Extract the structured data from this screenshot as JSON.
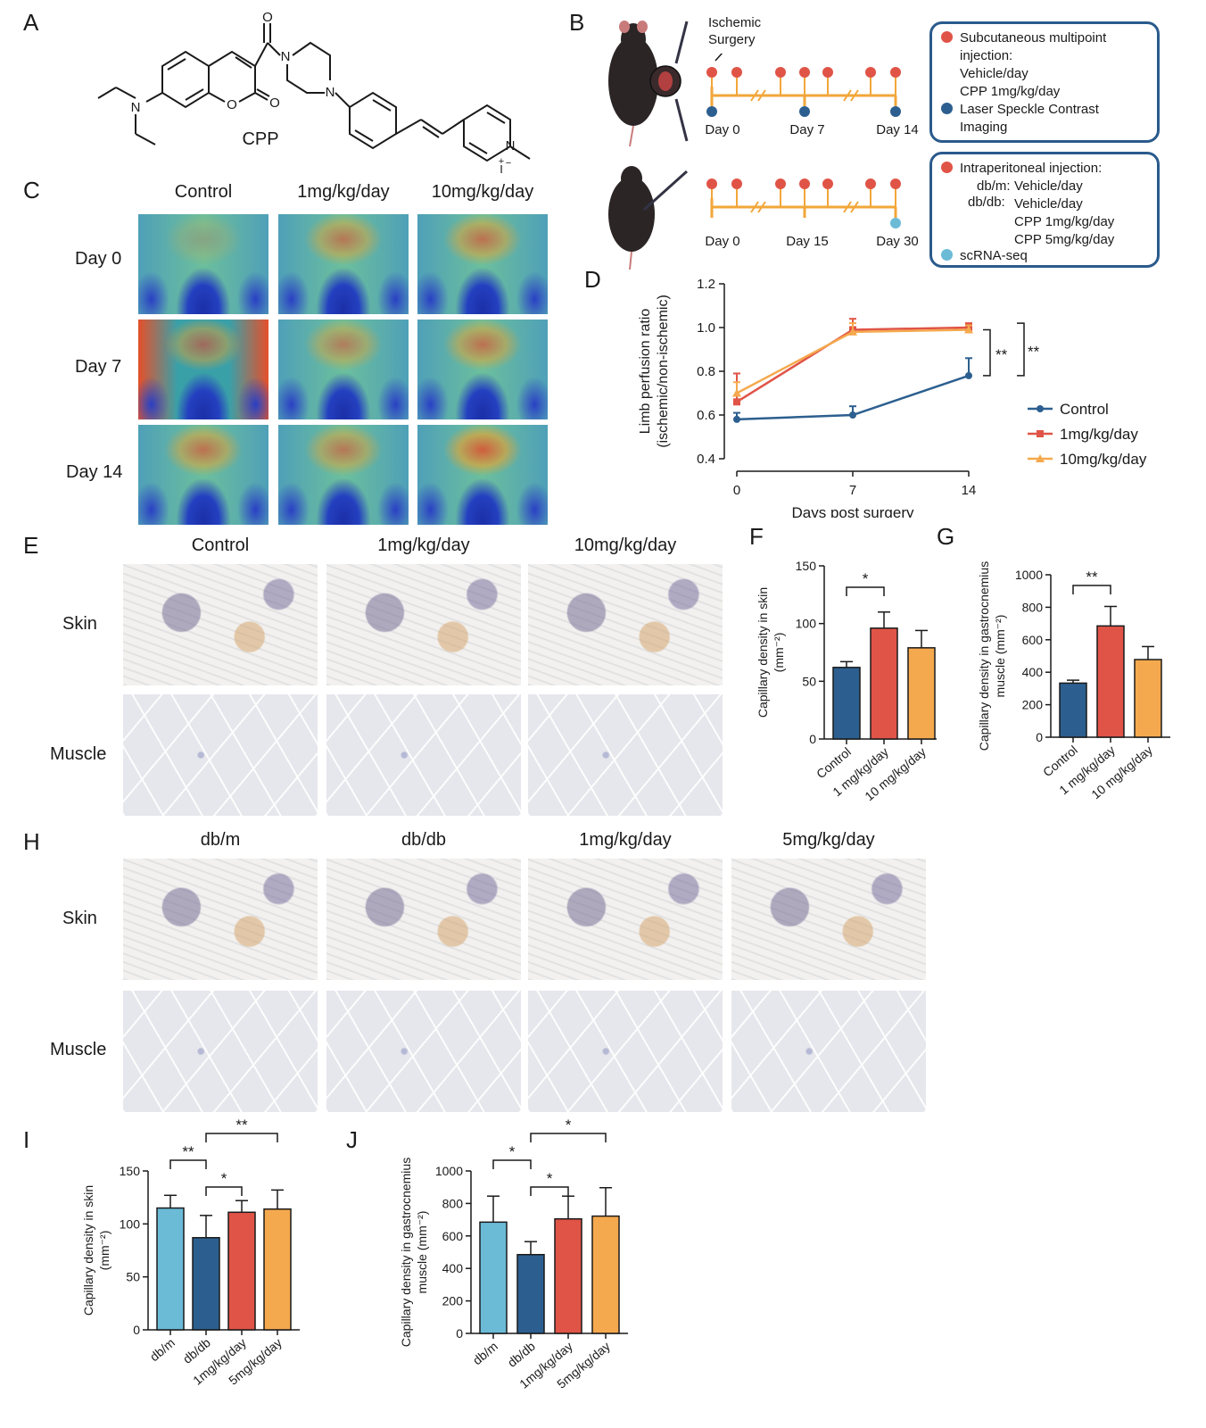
{
  "panels": {
    "A": "A",
    "B": "B",
    "C": "C",
    "D": "D",
    "E": "E",
    "F": "F",
    "G": "G",
    "H": "H",
    "I": "I",
    "J": "J"
  },
  "colors": {
    "control": "#2c5f8f",
    "dose1": "#e05447",
    "dose10": "#f5a94e",
    "dbm": "#6bbbd7",
    "red_dot": "#e05447",
    "blue_dot": "#2c5f8f",
    "light_dot": "#6bbbd7",
    "timeline": "#f2a63a",
    "box_border": "#2a5a8c"
  },
  "panelA": {
    "molecule_label": "CPP",
    "atoms": [
      "N",
      "O",
      "O",
      "O",
      "N",
      "N",
      "N",
      "+",
      "I",
      "−"
    ]
  },
  "panelB": {
    "surgery_label": "Ischemic Surgery",
    "top_days": [
      "Day 0",
      "Day 7",
      "Day 14"
    ],
    "bottom_days": [
      "Day 0",
      "Day 15",
      "Day 30"
    ],
    "box1": [
      "Subcutaneous multipoint",
      "injection:",
      "Vehicle/day",
      "CPP 1mg/kg/day",
      "Laser Speckle Contrast",
      "Imaging"
    ],
    "box2": {
      "title": "Intraperitoneal injection:",
      "dbm_label": "db/m:",
      "dbm_value": "Vehicle/day",
      "dbdb_label": "db/db:",
      "dbdb_values": [
        "Vehicle/day",
        "CPP 1mg/kg/day",
        "CPP 5mg/kg/day"
      ],
      "seq": "scRNA-seq"
    }
  },
  "panelC": {
    "columns": [
      "Control",
      "1mg/kg/day",
      "10mg/kg/day"
    ],
    "rows": [
      "Day 0",
      "Day 7",
      "Day 14"
    ]
  },
  "panelE": {
    "columns": [
      "Control",
      "1mg/kg/day",
      "10mg/kg/day"
    ],
    "rows": [
      "Skin",
      "Muscle"
    ]
  },
  "panelH": {
    "columns": [
      "db/m",
      "db/db",
      "1mg/kg/day",
      "5mg/kg/day"
    ],
    "rows": [
      "Skin",
      "Muscle"
    ]
  },
  "chart_data": [
    {
      "id": "D",
      "type": "line",
      "x": [
        0,
        7,
        14
      ],
      "series": [
        {
          "name": "Control",
          "values": [
            0.58,
            0.6,
            0.78
          ],
          "errors": [
            0.03,
            0.04,
            0.08
          ],
          "color": "#2c5f8f",
          "marker": "circle"
        },
        {
          "name": "1mg/kg/day",
          "values": [
            0.66,
            0.99,
            1.0
          ],
          "errors": [
            0.13,
            0.05,
            0.02
          ],
          "color": "#e05447",
          "marker": "square"
        },
        {
          "name": "10mg/kg/day",
          "values": [
            0.7,
            0.98,
            0.99
          ],
          "errors": [
            0.05,
            0.04,
            0.02
          ],
          "color": "#f5a94e",
          "marker": "triangle"
        }
      ],
      "xlabel": "Days post surgery",
      "ylabel": [
        "Limb perfusion ratio",
        "(ischemic/non-ischemic)"
      ],
      "xticks": [
        "0",
        "7",
        "14"
      ],
      "yticks": [
        "0.4",
        "0.6",
        "0.8",
        "1.0",
        "1.2"
      ],
      "ylim": [
        0.4,
        1.2
      ],
      "significance": [
        "**",
        "**"
      ],
      "legend": "right"
    },
    {
      "id": "F",
      "type": "bar",
      "categories": [
        "Control",
        "1 mg/kg/day",
        "10 mg/kg/day"
      ],
      "values": [
        62,
        96,
        79
      ],
      "errors": [
        5,
        14,
        15
      ],
      "colors": [
        "#2c5f8f",
        "#e05447",
        "#f5a94e"
      ],
      "ylabel": [
        "Capillary density in skin",
        "(mm⁻²)"
      ],
      "yticks": [
        "0",
        "50",
        "100",
        "150"
      ],
      "ylim": [
        0,
        150
      ],
      "significance": [
        {
          "from": 0,
          "to": 1,
          "label": "*"
        }
      ]
    },
    {
      "id": "G",
      "type": "bar",
      "categories": [
        "Control",
        "1 mg/kg/day",
        "10 mg/kg/day"
      ],
      "values": [
        333,
        685,
        478
      ],
      "errors": [
        18,
        120,
        80
      ],
      "colors": [
        "#2c5f8f",
        "#e05447",
        "#f5a94e"
      ],
      "ylabel": [
        "Capillary density in gastrocnemius",
        "muscle (mm⁻²)"
      ],
      "yticks": [
        "0",
        "200",
        "400",
        "600",
        "800",
        "1000"
      ],
      "ylim": [
        0,
        1000
      ],
      "significance": [
        {
          "from": 0,
          "to": 1,
          "label": "**"
        }
      ]
    },
    {
      "id": "I",
      "type": "bar",
      "categories": [
        "db/m",
        "db/db",
        "1mg/kg/day",
        "5mg/kg/day"
      ],
      "values": [
        115,
        87,
        111,
        114
      ],
      "errors": [
        12,
        21,
        11,
        18
      ],
      "colors": [
        "#6bbbd7",
        "#2c5f8f",
        "#e05447",
        "#f5a94e"
      ],
      "ylabel": [
        "Capillary density in skin",
        "(mm⁻²)"
      ],
      "yticks": [
        "0",
        "50",
        "100",
        "150"
      ],
      "ylim": [
        0,
        150
      ],
      "significance": [
        {
          "from": 0,
          "to": 1,
          "label": "**"
        },
        {
          "from": 1,
          "to": 2,
          "label": "*"
        },
        {
          "from": 1,
          "to": 3,
          "label": "**"
        }
      ]
    },
    {
      "id": "J",
      "type": "bar",
      "categories": [
        "db/m",
        "db/db",
        "1mg/kg/day",
        "5mg/kg/day"
      ],
      "values": [
        685,
        485,
        705,
        722
      ],
      "errors": [
        160,
        80,
        140,
        175
      ],
      "colors": [
        "#6bbbd7",
        "#2c5f8f",
        "#e05447",
        "#f5a94e"
      ],
      "ylabel": [
        "Capillary density in gastrocnemius",
        "muscle (mm⁻²)"
      ],
      "yticks": [
        "0",
        "200",
        "400",
        "600",
        "800",
        "1000"
      ],
      "ylim": [
        0,
        1000
      ],
      "significance": [
        {
          "from": 0,
          "to": 1,
          "label": "*"
        },
        {
          "from": 1,
          "to": 2,
          "label": "*"
        },
        {
          "from": 1,
          "to": 3,
          "label": "*"
        }
      ]
    }
  ]
}
